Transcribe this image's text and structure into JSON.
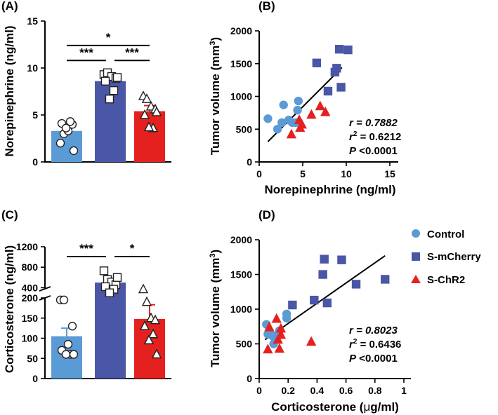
{
  "colors": {
    "control": "#5b9bd5",
    "mcherry": "#4a56a6",
    "chr2": "#e4211f"
  },
  "legend": [
    {
      "label": "Control",
      "key": "control"
    },
    {
      "label": "S-mCherry",
      "key": "mcherry"
    },
    {
      "label": "S-ChR2",
      "key": "chr2"
    }
  ],
  "chart_data": [
    {
      "panel": "(A)",
      "type": "bar",
      "ylabel": "Norepinephrine (ng/ml)",
      "ylim": [
        0,
        15
      ],
      "yticks": [
        0,
        5,
        10,
        15
      ],
      "series": [
        {
          "name": "Control",
          "key": "control",
          "mean": 3.3,
          "sem": 0.5,
          "points": [
            2.0,
            3.0,
            3.3,
            4.0,
            4.1,
            4.3,
            3.6,
            1.2
          ]
        },
        {
          "name": "S-mCherry",
          "key": "mcherry",
          "mean": 8.6,
          "sem": 0.5,
          "points": [
            9.3,
            9.5,
            9.1,
            8.9,
            8.6,
            7.6,
            6.7,
            9.0
          ]
        },
        {
          "name": "S-ChR2",
          "key": "chr2",
          "mean": 5.4,
          "sem": 0.6,
          "points": [
            7.0,
            6.7,
            5.9,
            5.6,
            5.0,
            3.6,
            3.7,
            5.3
          ]
        }
      ],
      "brackets": [
        {
          "from": 0,
          "to": 2,
          "y": 12.4,
          "label": "*"
        },
        {
          "from": 0,
          "to": 1,
          "y": 10.8,
          "label": "***"
        },
        {
          "from": 1,
          "to": 2,
          "y": 10.8,
          "label": "***"
        }
      ]
    },
    {
      "panel": "(B)",
      "type": "scatter",
      "xlabel": "Norepinephrine (ng/ml)",
      "ylabel_main": "Tumor volume (mm",
      "ylabel_sup": "3",
      "ylabel_end": ")",
      "xlim": [
        0,
        15
      ],
      "ylim": [
        0,
        2000
      ],
      "xticks": [
        0,
        5,
        10,
        15
      ],
      "yticks": [
        0,
        500,
        1000,
        1500,
        2000
      ],
      "series": [
        {
          "name": "Control",
          "key": "control",
          "points": [
            [
              1.0,
              660
            ],
            [
              2.1,
              500
            ],
            [
              2.6,
              600
            ],
            [
              2.8,
              870
            ],
            [
              3.4,
              640
            ],
            [
              3.8,
              600
            ],
            [
              4.4,
              790
            ],
            [
              4.5,
              930
            ],
            [
              4.2,
              600
            ]
          ]
        },
        {
          "name": "S-mCherry",
          "key": "mcherry",
          "points": [
            [
              6.6,
              1510
            ],
            [
              7.9,
              1080
            ],
            [
              8.7,
              1370
            ],
            [
              8.9,
              1430
            ],
            [
              9.2,
              1720
            ],
            [
              9.4,
              1140
            ],
            [
              10.2,
              1710
            ]
          ]
        },
        {
          "name": "S-ChR2",
          "key": "chr2",
          "points": [
            [
              3.7,
              420
            ],
            [
              4.7,
              520
            ],
            [
              4.6,
              640
            ],
            [
              4.9,
              570
            ],
            [
              6.0,
              720
            ],
            [
              7.0,
              850
            ],
            [
              7.6,
              760
            ]
          ]
        }
      ],
      "fit": [
        [
          1.0,
          310
        ],
        [
          9.5,
          1440
        ]
      ],
      "stats": {
        "r_label": "r",
        "r_value": " = 0.7882",
        "r2_label": "r",
        "r2_sup": "2",
        "r2_value": " = 0.6212",
        "p_label": "P",
        "p_value": " <0.0001"
      }
    },
    {
      "panel": "(C)",
      "type": "bar",
      "ylabel": "Corticosterone (ng/ml)",
      "upper_ylim": [
        200,
        1200
      ],
      "upper_yticks": [
        400,
        800,
        1200
      ],
      "lower_ylim": [
        0,
        200
      ],
      "lower_yticks": [
        0,
        50,
        100,
        150,
        200
      ],
      "series": [
        {
          "name": "Control",
          "key": "control",
          "mean": 105,
          "sem": 20,
          "points": [
            195,
            195,
            85,
            130,
            70,
            60,
            60,
            60
          ]
        },
        {
          "name": "S-mCherry",
          "key": "mcherry",
          "mean": 500,
          "sem": 70,
          "points": [
            730,
            560,
            510,
            460,
            420,
            370,
            300,
            600
          ]
        },
        {
          "name": "S-ChR2",
          "key": "chr2",
          "mean": 148,
          "sem": 35,
          "points": [
            370,
            190,
            150,
            145,
            130,
            110,
            95,
            60
          ]
        }
      ],
      "brackets": [
        {
          "from": 0,
          "to": 1,
          "label": "***"
        },
        {
          "from": 1,
          "to": 2,
          "label": "*"
        }
      ]
    },
    {
      "panel": "(D)",
      "type": "scatter",
      "xlabel_main": "Corticosterone (",
      "xlabel_mu": "μ",
      "xlabel_end": "g/ml)",
      "ylabel_main": "Tumor volume (mm",
      "ylabel_sup": "3",
      "ylabel_end": ")",
      "xlim": [
        0,
        1.0
      ],
      "ylim": [
        0,
        2000
      ],
      "xticks": [
        0,
        0.2,
        0.4,
        0.6,
        0.8,
        1.0
      ],
      "yticks": [
        0,
        500,
        1000,
        1500,
        2000
      ],
      "series": [
        {
          "name": "Control",
          "key": "control",
          "points": [
            [
              0.05,
              780
            ],
            [
              0.06,
              640
            ],
            [
              0.07,
              640
            ],
            [
              0.09,
              620
            ],
            [
              0.1,
              600
            ],
            [
              0.1,
              500
            ],
            [
              0.14,
              690
            ],
            [
              0.19,
              870
            ],
            [
              0.19,
              930
            ]
          ]
        },
        {
          "name": "S-mCherry",
          "key": "mcherry",
          "points": [
            [
              0.23,
              1060
            ],
            [
              0.38,
              1130
            ],
            [
              0.44,
              1500
            ],
            [
              0.45,
              1720
            ],
            [
              0.47,
              1090
            ],
            [
              0.57,
              1710
            ],
            [
              0.67,
              1360
            ],
            [
              0.87,
              1430
            ]
          ]
        },
        {
          "name": "S-ChR2",
          "key": "chr2",
          "points": [
            [
              0.06,
              420
            ],
            [
              0.07,
              740
            ],
            [
              0.12,
              860
            ],
            [
              0.13,
              560
            ],
            [
              0.14,
              430
            ],
            [
              0.15,
              720
            ],
            [
              0.15,
              630
            ],
            [
              0.36,
              530
            ]
          ]
        }
      ],
      "fit": [
        [
          0.04,
          560
        ],
        [
          0.87,
          1770
        ]
      ],
      "stats": {
        "r_label": "r",
        "r_value": " = 0.8023",
        "r2_label": "r",
        "r2_sup": "2",
        "r2_value": " = 0.6436",
        "p_label": "P",
        "p_value": " <0.0001"
      }
    }
  ]
}
